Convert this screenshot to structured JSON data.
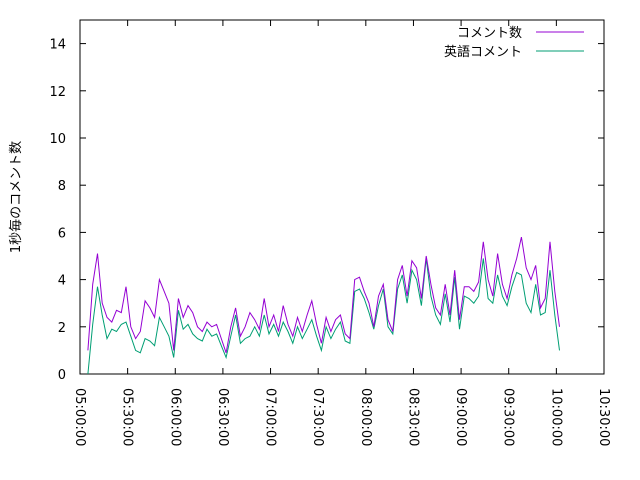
{
  "chart_data": {
    "type": "line",
    "ylabel": "1秒毎のコメント数",
    "xlabel": "",
    "title": "",
    "x_tick_labels": [
      "05:00:00",
      "05:30:00",
      "06:00:00",
      "06:30:00",
      "07:00:00",
      "07:30:00",
      "08:00:00",
      "08:30:00",
      "09:00:00",
      "09:30:00",
      "10:00:00",
      "10:30:00"
    ],
    "x_tick_minutes": [
      0,
      30,
      60,
      90,
      120,
      150,
      180,
      210,
      240,
      270,
      300,
      330
    ],
    "xlim_minutes": [
      0,
      330
    ],
    "ylim": [
      0,
      15
    ],
    "y_ticks": [
      0,
      2,
      4,
      6,
      8,
      10,
      12,
      14
    ],
    "legend_position": "top-right",
    "grid": false,
    "series": [
      {
        "name": "コメント数",
        "color": "#9400d3",
        "x_minutes": [
          5,
          8,
          11,
          14,
          17,
          20,
          23,
          26,
          29,
          32,
          35,
          38,
          41,
          44,
          47,
          50,
          53,
          56,
          59,
          62,
          65,
          68,
          71,
          74,
          77,
          80,
          83,
          86,
          89,
          92,
          95,
          98,
          101,
          104,
          107,
          110,
          113,
          116,
          119,
          122,
          125,
          128,
          131,
          134,
          137,
          140,
          143,
          146,
          149,
          152,
          155,
          158,
          161,
          164,
          167,
          170,
          173,
          176,
          179,
          182,
          185,
          188,
          191,
          194,
          197,
          200,
          203,
          206,
          209,
          212,
          215,
          218,
          221,
          224,
          227,
          230,
          233,
          236,
          239,
          242,
          245,
          248,
          251,
          254,
          257,
          260,
          263,
          266,
          269,
          272,
          275,
          278,
          281,
          284,
          287,
          290,
          293,
          296,
          299,
          302
        ],
        "values": [
          1.0,
          3.8,
          5.1,
          3.0,
          2.4,
          2.2,
          2.7,
          2.6,
          3.7,
          2.0,
          1.5,
          1.8,
          3.1,
          2.8,
          2.4,
          4.0,
          3.5,
          3.0,
          1.0,
          3.2,
          2.4,
          2.9,
          2.6,
          2.0,
          1.8,
          2.2,
          2.0,
          2.1,
          1.5,
          0.9,
          2.0,
          2.8,
          1.6,
          2.0,
          2.6,
          2.3,
          1.9,
          3.2,
          2.0,
          2.5,
          1.8,
          2.9,
          2.1,
          1.6,
          2.4,
          1.8,
          2.5,
          3.1,
          2.1,
          1.3,
          2.4,
          1.8,
          2.3,
          2.5,
          1.7,
          1.5,
          4.0,
          4.1,
          3.5,
          3.0,
          2.0,
          3.3,
          3.8,
          2.3,
          1.8,
          4.0,
          4.6,
          3.3,
          4.8,
          4.5,
          3.2,
          5.0,
          3.8,
          2.8,
          2.5,
          3.8,
          2.5,
          4.4,
          2.3,
          3.7,
          3.7,
          3.5,
          3.9,
          5.6,
          4.0,
          3.3,
          5.1,
          3.8,
          3.2,
          4.2,
          4.9,
          5.8,
          4.5,
          4.0,
          4.6,
          2.8,
          3.2,
          5.6,
          3.5,
          2.0
        ]
      },
      {
        "name": "英語コメント",
        "color": "#009e73",
        "x_minutes": [
          5,
          8,
          11,
          14,
          17,
          20,
          23,
          26,
          29,
          32,
          35,
          38,
          41,
          44,
          47,
          50,
          53,
          56,
          59,
          62,
          65,
          68,
          71,
          74,
          77,
          80,
          83,
          86,
          89,
          92,
          95,
          98,
          101,
          104,
          107,
          110,
          113,
          116,
          119,
          122,
          125,
          128,
          131,
          134,
          137,
          140,
          143,
          146,
          149,
          152,
          155,
          158,
          161,
          164,
          167,
          170,
          173,
          176,
          179,
          182,
          185,
          188,
          191,
          194,
          197,
          200,
          203,
          206,
          209,
          212,
          215,
          218,
          221,
          224,
          227,
          230,
          233,
          236,
          239,
          242,
          245,
          248,
          251,
          254,
          257,
          260,
          263,
          266,
          269,
          272,
          275,
          278,
          281,
          284,
          287,
          290,
          293,
          296,
          299,
          302
        ],
        "values": [
          0.0,
          2.1,
          3.7,
          2.5,
          1.5,
          1.9,
          1.8,
          2.1,
          2.2,
          1.6,
          1.0,
          0.9,
          1.5,
          1.4,
          1.2,
          2.4,
          2.0,
          1.6,
          0.7,
          2.7,
          1.9,
          2.1,
          1.7,
          1.5,
          1.4,
          1.9,
          1.6,
          1.7,
          1.2,
          0.7,
          1.6,
          2.5,
          1.3,
          1.5,
          1.6,
          2.0,
          1.6,
          2.5,
          1.7,
          2.1,
          1.6,
          2.2,
          1.8,
          1.3,
          2.0,
          1.5,
          1.9,
          2.3,
          1.6,
          1.0,
          2.0,
          1.5,
          1.9,
          2.2,
          1.4,
          1.3,
          3.5,
          3.6,
          3.2,
          2.6,
          1.9,
          2.9,
          3.6,
          2.0,
          1.7,
          3.6,
          4.2,
          3.0,
          4.4,
          4.0,
          2.9,
          4.9,
          3.3,
          2.5,
          2.1,
          3.4,
          2.2,
          4.1,
          1.9,
          3.3,
          3.2,
          3.0,
          3.3,
          4.9,
          3.2,
          3.0,
          4.2,
          3.3,
          2.9,
          3.7,
          4.3,
          4.2,
          3.0,
          2.6,
          3.8,
          2.5,
          2.6,
          4.4,
          2.5,
          1.0
        ]
      }
    ]
  }
}
